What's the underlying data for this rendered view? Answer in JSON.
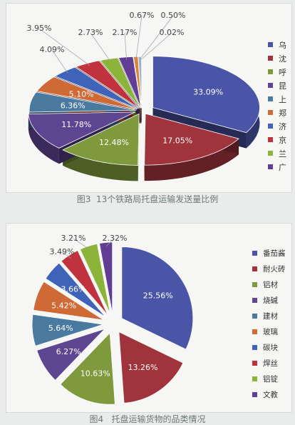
{
  "chart_data": [
    {
      "type": "pie",
      "title": "",
      "caption": "图3  13个铁路局托盘运输发送量比例",
      "legend_position": "right",
      "series": [
        {
          "categories": [
            "乌",
            "沈",
            "呼",
            "昆",
            "上",
            "郑",
            "济",
            "京",
            "兰",
            "广"
          ],
          "values": [
            33.09,
            17.05,
            12.48,
            11.78,
            6.36,
            5.1,
            4.09,
            3.95,
            2.73,
            2.17
          ]
        }
      ],
      "extra_data_labels": [
        "0.67%",
        "0.50%",
        "0.02%"
      ],
      "extra_values": [
        0.67,
        0.5,
        0.02
      ],
      "data_labels": [
        "33.09%",
        "17.05%",
        "12.48%",
        "11.78%",
        "6.36%",
        "5.10%",
        "4.09%",
        "3.95%",
        "2.73%",
        "2.17%",
        "0.67%",
        "0.50%",
        "0.02%"
      ]
    },
    {
      "type": "pie",
      "title": "",
      "caption": "图4   托盘运输货物的品类情况",
      "legend_position": "right",
      "series": [
        {
          "categories": [
            "番茄酱",
            "耐火砖",
            "铝材",
            "烧碱",
            "建材",
            "玻璃",
            "碳块",
            "焊丝",
            "铝锭",
            "文教"
          ],
          "values": [
            25.56,
            13.26,
            10.63,
            6.27,
            5.64,
            5.42,
            3.66,
            3.49,
            3.21,
            2.32
          ]
        }
      ],
      "data_labels": [
        "25.56%",
        "13.26%",
        "10.63%",
        "6.27%",
        "5.64%",
        "5.42%",
        "3.66%",
        "3.49%",
        "3.21%",
        "2.32%"
      ]
    }
  ],
  "colors": [
    "#4a55a8",
    "#a0343c",
    "#7e9a3c",
    "#5e4592",
    "#4b7aa1",
    "#cf6a37",
    "#3f63b9",
    "#c0333e",
    "#8db43a",
    "#603e93",
    "#d8833a",
    "#9fb0c8",
    "#e0e0e0"
  ]
}
